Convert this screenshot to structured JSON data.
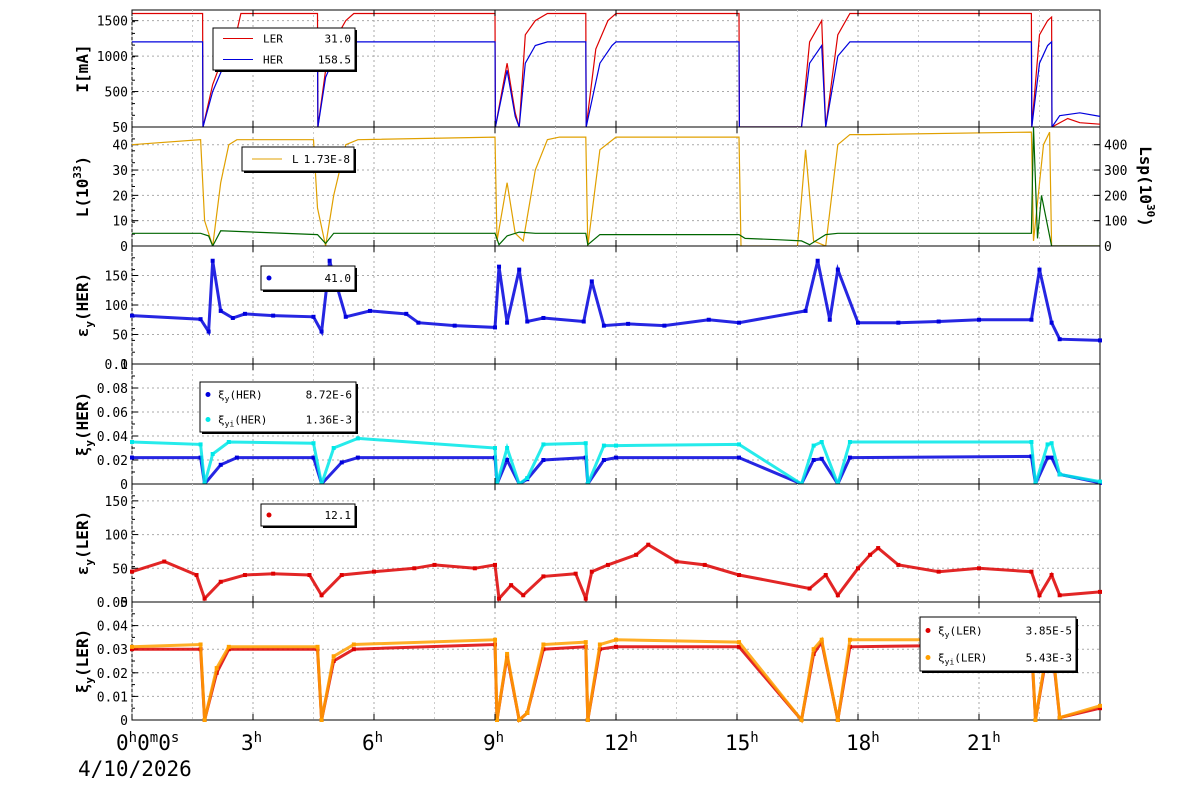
{
  "x_axis": {
    "ticks": [
      {
        "main": "0",
        "sup": "h",
        "full": "0h0m0s",
        "value": 0
      },
      {
        "main": "3",
        "sup": "h",
        "value": 3
      },
      {
        "main": "6",
        "sup": "h",
        "value": 6
      },
      {
        "main": "9",
        "sup": "h",
        "value": 9
      },
      {
        "main": "12",
        "sup": "h",
        "value": 12
      },
      {
        "main": "15",
        "sup": "h",
        "value": 15
      },
      {
        "main": "18",
        "sup": "h",
        "value": 18
      },
      {
        "main": "21",
        "sup": "h",
        "value": 21
      }
    ],
    "range": [
      0,
      24
    ],
    "date": "4/10/2026"
  },
  "colors": {
    "ler": "#dd0000",
    "her": "#0000dd",
    "lum": "#e0a000",
    "lsp": "#006600",
    "cyan": "#00e8e8",
    "orange": "#ffa000"
  },
  "chart_data": [
    {
      "type": "line",
      "ylabel": "I[mA]",
      "ylim": [
        0,
        1650
      ],
      "yticks": [
        "50",
        "500",
        "1000",
        "1500"
      ],
      "legend": [
        {
          "name": "LER",
          "value": "31.0",
          "color": "#dd0000"
        },
        {
          "name": "HER",
          "value": "158.5",
          "color": "#0000dd"
        }
      ],
      "series": [
        {
          "name": "LER",
          "x": [
            0,
            1.75,
            1.76,
            2.0,
            2.2,
            2.5,
            2.7,
            4.6,
            4.61,
            4.8,
            5.0,
            5.3,
            5.5,
            9.0,
            9.01,
            9.3,
            9.5,
            9.6,
            9.75,
            10.0,
            10.3,
            11.25,
            11.26,
            11.5,
            11.8,
            12.0,
            15.05,
            15.06,
            16.6,
            16.8,
            17.1,
            17.2,
            17.5,
            17.8,
            18.0,
            22.3,
            22.31,
            22.5,
            22.7,
            22.8,
            22.81,
            23.2,
            23.5,
            24.0
          ],
          "y": [
            1600,
            1600,
            0,
            600,
            900,
            1100,
            1600,
            1600,
            0,
            800,
            1200,
            1500,
            1600,
            1600,
            0,
            900,
            200,
            0,
            1300,
            1500,
            1600,
            1600,
            0,
            1100,
            1500,
            1600,
            1600,
            0,
            0,
            1200,
            1500,
            0,
            1300,
            1600,
            1600,
            1600,
            0,
            1300,
            1500,
            1550,
            0,
            120,
            60,
            40
          ]
        },
        {
          "name": "HER",
          "x": [
            0,
            1.75,
            1.76,
            2.0,
            2.3,
            2.6,
            4.6,
            4.61,
            4.8,
            5.1,
            5.5,
            9.0,
            9.01,
            9.3,
            9.5,
            9.6,
            9.75,
            10.0,
            10.3,
            11.25,
            11.26,
            11.6,
            11.9,
            12.0,
            15.05,
            15.06,
            16.6,
            16.8,
            17.1,
            17.2,
            17.5,
            17.8,
            18.0,
            22.3,
            22.31,
            22.5,
            22.7,
            22.8,
            22.81,
            23.0,
            23.5,
            24.0
          ],
          "y": [
            1200,
            1200,
            0,
            500,
            900,
            1200,
            1200,
            0,
            700,
            1100,
            1200,
            1200,
            0,
            800,
            150,
            0,
            900,
            1150,
            1200,
            1200,
            0,
            900,
            1150,
            1200,
            1200,
            0,
            0,
            900,
            1150,
            0,
            1000,
            1200,
            1200,
            1200,
            0,
            900,
            1150,
            1200,
            0,
            160,
            200,
            150
          ]
        }
      ]
    },
    {
      "type": "line",
      "ylabel": "L(10^33)",
      "ylabel_main": "L(10",
      "ylabel_sup": "33",
      "ylabel_tail": ")",
      "ylim": [
        0,
        47
      ],
      "yticks": [
        "0",
        "10",
        "20",
        "30",
        "40"
      ],
      "y2label": "Lsp(10^30)",
      "y2label_main": "Lsp(10",
      "y2label_sup": "30",
      "y2label_tail": ")",
      "y2lim": [
        0,
        470
      ],
      "y2ticks": [
        "0",
        "100",
        "200",
        "300",
        "400"
      ],
      "legend": [
        {
          "name": "L",
          "value": "1.73E-8",
          "color": "#e0a000"
        }
      ],
      "series": [
        {
          "name": "L",
          "x": [
            0,
            1.7,
            1.8,
            2.0,
            2.2,
            2.4,
            2.6,
            4.5,
            4.6,
            4.8,
            5.0,
            5.3,
            5.6,
            9.0,
            9.05,
            9.3,
            9.5,
            9.7,
            10.0,
            10.3,
            10.6,
            11.25,
            11.3,
            11.6,
            12.0,
            15.05,
            15.1,
            16.5,
            16.7,
            16.9,
            17.2,
            17.5,
            17.8,
            18.2,
            22.3,
            22.35,
            22.6,
            22.75,
            22.8,
            24.0
          ],
          "y": [
            40,
            42,
            10,
            0,
            25,
            40,
            42,
            42,
            15,
            0,
            20,
            40,
            42,
            43,
            2,
            25,
            5,
            2,
            30,
            42,
            43,
            43,
            0,
            38,
            43,
            43,
            0,
            0,
            38,
            2,
            0,
            40,
            44,
            44,
            45,
            2,
            40,
            45,
            0,
            0
          ]
        },
        {
          "name": "Lsp",
          "x": [
            0,
            1.7,
            1.9,
            2.0,
            2.2,
            4.6,
            4.8,
            5.0,
            9.0,
            9.1,
            9.3,
            9.6,
            10.0,
            11.25,
            11.3,
            11.6,
            15.05,
            15.2,
            16.0,
            16.6,
            16.8,
            17.2,
            17.5,
            22.3,
            22.35,
            22.45,
            22.55,
            22.8,
            24.0
          ],
          "y": [
            50,
            50,
            40,
            0,
            60,
            45,
            10,
            50,
            50,
            5,
            40,
            55,
            50,
            50,
            5,
            45,
            45,
            30,
            25,
            20,
            5,
            45,
            50,
            50,
            470,
            30,
            200,
            0,
            0
          ]
        }
      ]
    },
    {
      "type": "scatter",
      "ylabel": "εy(HER)",
      "ylabel_main": "ε",
      "ylabel_sub": "y",
      "ylabel_tail": "(HER)",
      "ylim": [
        0,
        200
      ],
      "yticks": [
        "0",
        "50",
        "100",
        "150"
      ],
      "legend": [
        {
          "name": "",
          "value": "41.0",
          "color": "#0000dd"
        }
      ],
      "series": [
        {
          "name": "εy(HER)",
          "color": "#0000dd",
          "x": [
            0,
            1.7,
            1.9,
            2.0,
            2.2,
            2.5,
            2.8,
            3.5,
            4.5,
            4.7,
            4.9,
            5.3,
            5.9,
            6.8,
            7.1,
            8.0,
            9.0,
            9.1,
            9.3,
            9.6,
            9.8,
            10.2,
            11.2,
            11.4,
            11.7,
            12.3,
            13.2,
            14.3,
            15.05,
            16.7,
            17.0,
            17.3,
            17.5,
            18.0,
            19.0,
            20.0,
            21.0,
            22.3,
            22.5,
            22.8,
            23.0,
            24.0
          ],
          "y": [
            82,
            76,
            55,
            175,
            90,
            78,
            85,
            82,
            80,
            55,
            175,
            80,
            90,
            85,
            70,
            65,
            62,
            165,
            70,
            160,
            72,
            78,
            72,
            140,
            65,
            68,
            65,
            75,
            70,
            90,
            175,
            75,
            160,
            70,
            70,
            72,
            75,
            75,
            160,
            70,
            42,
            40
          ]
        }
      ]
    },
    {
      "type": "scatter",
      "ylabel": "ξy(HER)",
      "ylabel_main": "ξ",
      "ylabel_sub": "y",
      "ylabel_tail": "(HER)",
      "ylim": [
        0,
        0.1
      ],
      "yticks": [
        "0",
        "0.02",
        "0.04",
        "0.06",
        "0.08",
        "0.1"
      ],
      "legend": [
        {
          "name": "ξy(HER)",
          "name_main": "ξ",
          "name_sub": "y",
          "name_tail": "(HER)",
          "value": "8.72E-6",
          "color": "#0000dd"
        },
        {
          "name": "ξyi(HER)",
          "name_main": "ξ",
          "name_sub": "yi",
          "name_tail": "(HER)",
          "value": "1.36E-3",
          "color": "#00e8e8"
        }
      ],
      "series": [
        {
          "name": "ξy(HER)",
          "color": "#0000dd",
          "x": [
            0,
            1.7,
            1.8,
            2.2,
            2.6,
            4.5,
            4.7,
            5.2,
            5.6,
            9.0,
            9.05,
            9.3,
            9.6,
            9.8,
            10.2,
            11.25,
            11.3,
            11.7,
            12.0,
            15.05,
            16.6,
            16.9,
            17.1,
            17.5,
            17.8,
            22.3,
            22.4,
            22.7,
            22.8,
            23.0,
            24.0
          ],
          "y": [
            0.022,
            0.022,
            0,
            0.016,
            0.022,
            0.022,
            0,
            0.018,
            0.022,
            0.022,
            0,
            0.02,
            0,
            0.004,
            0.02,
            0.022,
            0,
            0.02,
            0.022,
            0.022,
            0,
            0.02,
            0.021,
            0,
            0.022,
            0.023,
            0,
            0.022,
            0.022,
            0.008,
            0.001
          ]
        },
        {
          "name": "ξyi(HER)",
          "color": "#00e8e8",
          "x": [
            0,
            1.7,
            1.8,
            2.0,
            2.4,
            4.5,
            4.7,
            5.0,
            5.6,
            9.0,
            9.05,
            9.3,
            9.6,
            9.8,
            10.2,
            11.25,
            11.3,
            11.7,
            12.0,
            15.05,
            16.6,
            16.9,
            17.1,
            17.5,
            17.8,
            22.3,
            22.4,
            22.7,
            22.8,
            23.0,
            24.0
          ],
          "y": [
            0.035,
            0.033,
            0,
            0.025,
            0.035,
            0.034,
            0,
            0.03,
            0.038,
            0.03,
            0,
            0.03,
            0,
            0.005,
            0.033,
            0.034,
            0,
            0.032,
            0.032,
            0.033,
            0,
            0.032,
            0.035,
            0,
            0.035,
            0.035,
            0,
            0.033,
            0.034,
            0.008,
            0.002
          ]
        }
      ]
    },
    {
      "type": "scatter",
      "ylabel": "εy(LER)",
      "ylabel_main": "ε",
      "ylabel_sub": "y",
      "ylabel_tail": "(LER)",
      "ylim": [
        0,
        175
      ],
      "yticks": [
        "0",
        "50",
        "100",
        "150"
      ],
      "legend": [
        {
          "name": "",
          "value": "12.1",
          "color": "#dd0000"
        }
      ],
      "series": [
        {
          "name": "εy(LER)",
          "color": "#dd0000",
          "x": [
            0,
            0.8,
            1.6,
            1.8,
            2.2,
            2.8,
            3.5,
            4.4,
            4.7,
            5.2,
            6.0,
            7.0,
            7.5,
            8.5,
            9.0,
            9.1,
            9.4,
            9.7,
            10.2,
            11.0,
            11.25,
            11.4,
            11.8,
            12.5,
            12.8,
            13.5,
            14.2,
            15.05,
            16.8,
            17.2,
            17.5,
            18.0,
            18.3,
            18.5,
            19.0,
            20.0,
            21.0,
            22.3,
            22.5,
            22.8,
            23.0,
            24.0
          ],
          "y": [
            45,
            60,
            40,
            5,
            30,
            40,
            42,
            40,
            10,
            40,
            45,
            50,
            55,
            50,
            55,
            5,
            25,
            10,
            38,
            42,
            5,
            45,
            55,
            70,
            85,
            60,
            55,
            40,
            20,
            40,
            10,
            50,
            70,
            80,
            55,
            45,
            50,
            45,
            10,
            40,
            10,
            15
          ]
        }
      ]
    },
    {
      "type": "scatter",
      "ylabel": "ξy(LER)",
      "ylabel_main": "ξ",
      "ylabel_sub": "y",
      "ylabel_tail": "(LER)",
      "ylim": [
        0,
        0.05
      ],
      "yticks": [
        "0",
        "0.01",
        "0.02",
        "0.03",
        "0.04",
        "0.05"
      ],
      "legend": [
        {
          "name": "ξy(LER)",
          "name_main": "ξ",
          "name_sub": "y",
          "name_tail": "(LER)",
          "value": "3.85E-5",
          "color": "#dd0000"
        },
        {
          "name": "ξyi(LER)",
          "name_main": "ξ",
          "name_sub": "yi",
          "name_tail": "(LER)",
          "value": "5.43E-3",
          "color": "#ffa000"
        }
      ],
      "series": [
        {
          "name": "ξy(LER)",
          "color": "#dd0000",
          "x": [
            0,
            1.7,
            1.8,
            2.1,
            2.4,
            4.6,
            4.7,
            5.0,
            5.5,
            9.0,
            9.05,
            9.3,
            9.6,
            9.8,
            10.2,
            11.25,
            11.3,
            11.6,
            12.0,
            15.05,
            16.6,
            16.9,
            17.1,
            17.5,
            17.8,
            22.3,
            22.4,
            22.7,
            22.8,
            23.0,
            24.0
          ],
          "y": [
            0.03,
            0.03,
            0,
            0.02,
            0.03,
            0.03,
            0,
            0.025,
            0.03,
            0.032,
            0,
            0.027,
            0,
            0.003,
            0.03,
            0.031,
            0,
            0.03,
            0.031,
            0.031,
            0,
            0.028,
            0.033,
            0,
            0.031,
            0.032,
            0,
            0.03,
            0.033,
            0.001,
            0.005
          ]
        },
        {
          "name": "ξyi(LER)",
          "color": "#ffa000",
          "x": [
            0,
            1.7,
            1.8,
            2.1,
            2.4,
            4.6,
            4.7,
            5.0,
            5.5,
            9.0,
            9.05,
            9.3,
            9.6,
            9.8,
            10.2,
            11.25,
            11.3,
            11.6,
            12.0,
            15.05,
            16.6,
            16.9,
            17.1,
            17.5,
            17.8,
            22.3,
            22.4,
            22.7,
            22.8,
            23.0,
            24.0
          ],
          "y": [
            0.031,
            0.032,
            0,
            0.022,
            0.031,
            0.031,
            0,
            0.027,
            0.032,
            0.034,
            0,
            0.028,
            0,
            0.003,
            0.032,
            0.033,
            0,
            0.032,
            0.034,
            0.033,
            0,
            0.03,
            0.034,
            0,
            0.034,
            0.034,
            0,
            0.032,
            0.035,
            0.001,
            0.006
          ]
        }
      ]
    }
  ]
}
